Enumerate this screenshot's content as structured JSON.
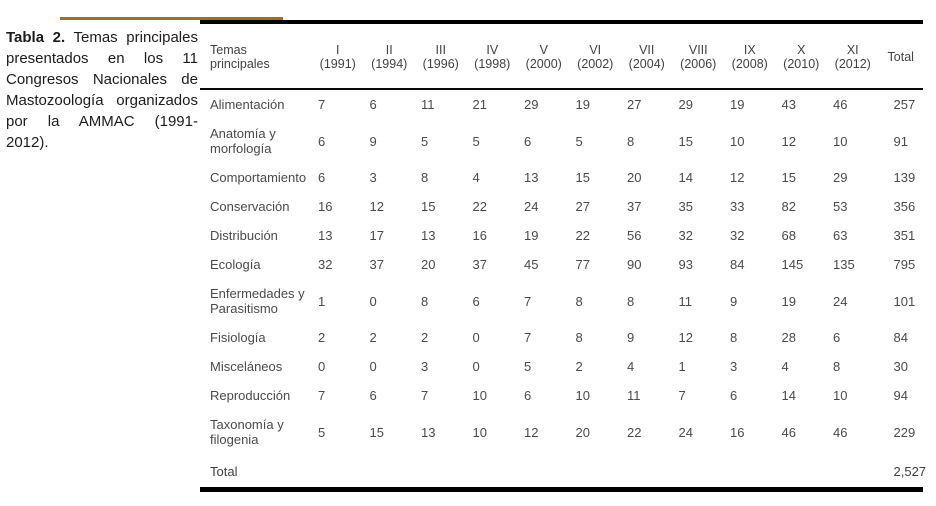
{
  "page": {
    "background": "#ffffff",
    "accent_color": "#96731c",
    "border_color": "#000000",
    "text_color": "#4a4a4a"
  },
  "caption": {
    "label": "Tabla 2.",
    "first_line_rest": "Temas principales",
    "lines": [
      "presentados en los 11",
      "Congresos Nacionales de",
      "Mastozoología organizados",
      "por la AMMAC (1991-",
      "2012)."
    ]
  },
  "table": {
    "col0_header": {
      "line1": "Temas",
      "line2": "principales"
    },
    "total_header": "Total",
    "columns": [
      {
        "numeral": "I",
        "year": "(1991)"
      },
      {
        "numeral": "II",
        "year": "(1994)"
      },
      {
        "numeral": "III",
        "year": "(1996)"
      },
      {
        "numeral": "IV",
        "year": "(1998)"
      },
      {
        "numeral": "V",
        "year": "(2000)"
      },
      {
        "numeral": "VI",
        "year": "(2002)"
      },
      {
        "numeral": "VII",
        "year": "(2004)"
      },
      {
        "numeral": "VIII",
        "year": "(2006)"
      },
      {
        "numeral": "IX",
        "year": "(2008)"
      },
      {
        "numeral": "X",
        "year": "(2010)"
      },
      {
        "numeral": "XI",
        "year": "(2012)"
      }
    ],
    "rows": [
      {
        "topic": "Alimentación",
        "values": [
          7,
          6,
          11,
          21,
          29,
          19,
          27,
          29,
          19,
          43,
          46
        ],
        "total": 257
      },
      {
        "topic": "Anatomía y morfología",
        "values": [
          6,
          9,
          5,
          5,
          6,
          5,
          8,
          15,
          10,
          12,
          10
        ],
        "total": 91
      },
      {
        "topic": "Comportamiento",
        "values": [
          6,
          3,
          8,
          4,
          13,
          15,
          20,
          14,
          12,
          15,
          29
        ],
        "total": 139
      },
      {
        "topic": "Conservación",
        "values": [
          16,
          12,
          15,
          22,
          24,
          27,
          37,
          35,
          33,
          82,
          53
        ],
        "total": 356
      },
      {
        "topic": "Distribución",
        "values": [
          13,
          17,
          13,
          16,
          19,
          22,
          56,
          32,
          32,
          68,
          63
        ],
        "total": 351
      },
      {
        "topic": "Ecología",
        "values": [
          32,
          37,
          20,
          37,
          45,
          77,
          90,
          93,
          84,
          145,
          135
        ],
        "total": 795
      },
      {
        "topic": "Enfermedades y Parasitismo",
        "values": [
          1,
          0,
          8,
          6,
          7,
          8,
          8,
          11,
          9,
          19,
          24
        ],
        "total": 101
      },
      {
        "topic": "Fisiología",
        "values": [
          2,
          2,
          2,
          0,
          7,
          8,
          9,
          12,
          8,
          28,
          6
        ],
        "total": 84
      },
      {
        "topic": "Misceláneos",
        "values": [
          0,
          0,
          3,
          0,
          5,
          2,
          4,
          1,
          3,
          4,
          8
        ],
        "total": 30
      },
      {
        "topic": "Reproducción",
        "values": [
          7,
          6,
          7,
          10,
          6,
          10,
          11,
          7,
          6,
          14,
          10
        ],
        "total": 94
      },
      {
        "topic": "Taxonomía y filogenia",
        "values": [
          5,
          15,
          13,
          10,
          12,
          20,
          22,
          24,
          16,
          46,
          46
        ],
        "total": 229
      }
    ],
    "footer": {
      "label": "Total",
      "grand_total": "2,527"
    }
  }
}
